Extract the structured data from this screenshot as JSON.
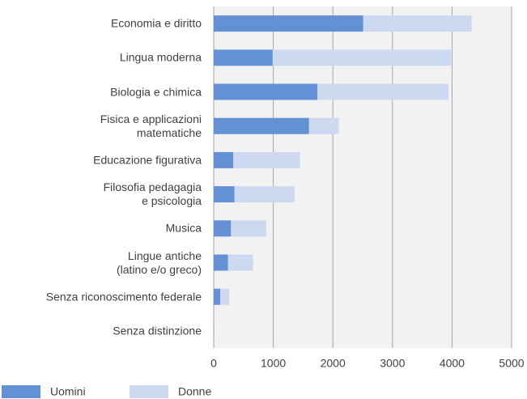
{
  "chart_data": {
    "type": "stacked-barh",
    "categories": [
      "Economia e diritto",
      "Lingua moderna",
      "Biologia e chimica",
      "Fisica e applicazioni\nmatematiche",
      "Educazione figurativa",
      "Filosofia pedagagia\ne psicologia",
      "Musica",
      "Lingue antiche\n(latino e/o greco)",
      "Senza riconoscimento federale",
      "Senza distinzione"
    ],
    "series": [
      {
        "name": "Uomini",
        "color": "#6391d4",
        "values": [
          2510,
          990,
          1740,
          1600,
          330,
          350,
          290,
          240,
          110,
          5
        ]
      },
      {
        "name": "Donne",
        "color": "#cdd9f1",
        "values": [
          1820,
          2990,
          2200,
          500,
          1120,
          1010,
          590,
          420,
          150,
          5
        ]
      }
    ],
    "xlim": [
      0,
      5000
    ],
    "xticks": [
      0,
      1000,
      2000,
      3000,
      4000,
      5000
    ],
    "grid": true,
    "legend": "bottom-left"
  }
}
